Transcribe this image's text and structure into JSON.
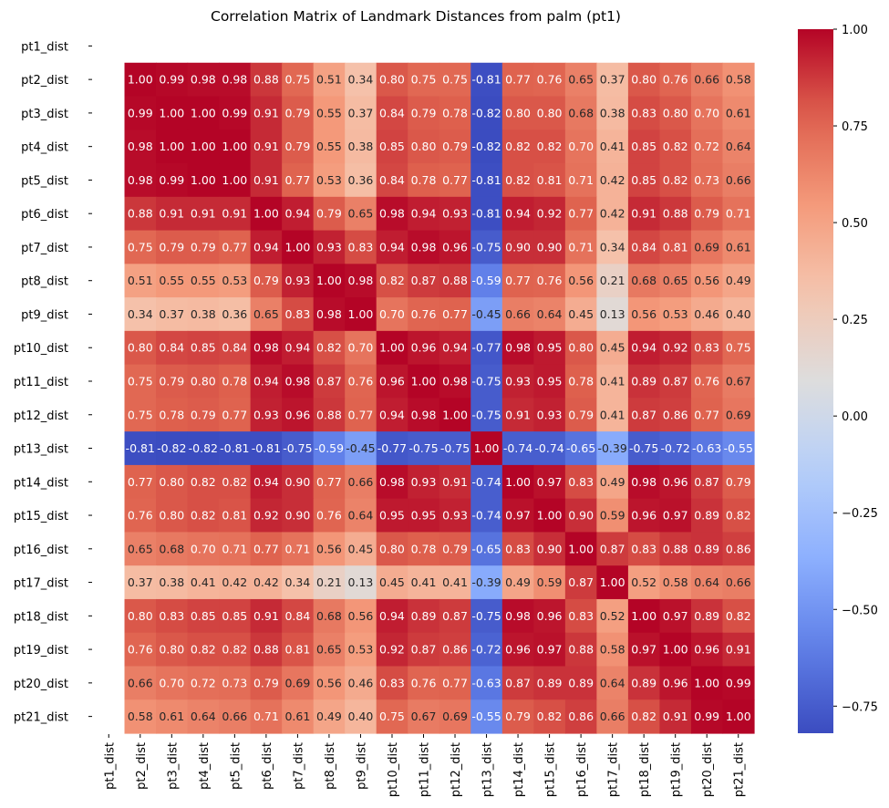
{
  "chart_data": {
    "type": "heatmap",
    "title": "Correlation Matrix of Landmark Distances from palm (pt1)",
    "rows": [
      "pt1_dist",
      "pt2_dist",
      "pt3_dist",
      "pt4_dist",
      "pt5_dist",
      "pt6_dist",
      "pt7_dist",
      "pt8_dist",
      "pt9_dist",
      "pt10_dist",
      "pt11_dist",
      "pt12_dist",
      "pt13_dist",
      "pt14_dist",
      "pt15_dist",
      "pt16_dist",
      "pt17_dist",
      "pt18_dist",
      "pt19_dist",
      "pt20_dist",
      "pt21_dist"
    ],
    "columns": [
      "pt1_dist",
      "pt2_dist",
      "pt3_dist",
      "pt4_dist",
      "pt5_dist",
      "pt6_dist",
      "pt7_dist",
      "pt8_dist",
      "pt9_dist",
      "pt10_dist",
      "pt11_dist",
      "pt12_dist",
      "pt13_dist",
      "pt14_dist",
      "pt15_dist",
      "pt16_dist",
      "pt17_dist",
      "pt18_dist",
      "pt19_dist",
      "pt20_dist",
      "pt21_dist"
    ],
    "values": [
      [
        null,
        null,
        null,
        null,
        null,
        null,
        null,
        null,
        null,
        null,
        null,
        null,
        null,
        null,
        null,
        null,
        null,
        null,
        null,
        null,
        null
      ],
      [
        null,
        1.0,
        0.99,
        0.98,
        0.98,
        0.88,
        0.75,
        0.51,
        0.34,
        0.8,
        0.75,
        0.75,
        -0.81,
        0.77,
        0.76,
        0.65,
        0.37,
        0.8,
        0.76,
        0.66,
        0.58
      ],
      [
        null,
        0.99,
        1.0,
        1.0,
        0.99,
        0.91,
        0.79,
        0.55,
        0.37,
        0.84,
        0.79,
        0.78,
        -0.82,
        0.8,
        0.8,
        0.68,
        0.38,
        0.83,
        0.8,
        0.7,
        0.61
      ],
      [
        null,
        0.98,
        1.0,
        1.0,
        1.0,
        0.91,
        0.79,
        0.55,
        0.38,
        0.85,
        0.8,
        0.79,
        -0.82,
        0.82,
        0.82,
        0.7,
        0.41,
        0.85,
        0.82,
        0.72,
        0.64
      ],
      [
        null,
        0.98,
        0.99,
        1.0,
        1.0,
        0.91,
        0.77,
        0.53,
        0.36,
        0.84,
        0.78,
        0.77,
        -0.81,
        0.82,
        0.81,
        0.71,
        0.42,
        0.85,
        0.82,
        0.73,
        0.66
      ],
      [
        null,
        0.88,
        0.91,
        0.91,
        0.91,
        1.0,
        0.94,
        0.79,
        0.65,
        0.98,
        0.94,
        0.93,
        -0.81,
        0.94,
        0.92,
        0.77,
        0.42,
        0.91,
        0.88,
        0.79,
        0.71
      ],
      [
        null,
        0.75,
        0.79,
        0.79,
        0.77,
        0.94,
        1.0,
        0.93,
        0.83,
        0.94,
        0.98,
        0.96,
        -0.75,
        0.9,
        0.9,
        0.71,
        0.34,
        0.84,
        0.81,
        0.69,
        0.61
      ],
      [
        null,
        0.51,
        0.55,
        0.55,
        0.53,
        0.79,
        0.93,
        1.0,
        0.98,
        0.82,
        0.87,
        0.88,
        -0.59,
        0.77,
        0.76,
        0.56,
        0.21,
        0.68,
        0.65,
        0.56,
        0.49
      ],
      [
        null,
        0.34,
        0.37,
        0.38,
        0.36,
        0.65,
        0.83,
        0.98,
        1.0,
        0.7,
        0.76,
        0.77,
        -0.45,
        0.66,
        0.64,
        0.45,
        0.13,
        0.56,
        0.53,
        0.46,
        0.4
      ],
      [
        null,
        0.8,
        0.84,
        0.85,
        0.84,
        0.98,
        0.94,
        0.82,
        0.7,
        1.0,
        0.96,
        0.94,
        -0.77,
        0.98,
        0.95,
        0.8,
        0.45,
        0.94,
        0.92,
        0.83,
        0.75
      ],
      [
        null,
        0.75,
        0.79,
        0.8,
        0.78,
        0.94,
        0.98,
        0.87,
        0.76,
        0.96,
        1.0,
        0.98,
        -0.75,
        0.93,
        0.95,
        0.78,
        0.41,
        0.89,
        0.87,
        0.76,
        0.67
      ],
      [
        null,
        0.75,
        0.78,
        0.79,
        0.77,
        0.93,
        0.96,
        0.88,
        0.77,
        0.94,
        0.98,
        1.0,
        -0.75,
        0.91,
        0.93,
        0.79,
        0.41,
        0.87,
        0.86,
        0.77,
        0.69
      ],
      [
        null,
        -0.81,
        -0.82,
        -0.82,
        -0.81,
        -0.81,
        -0.75,
        -0.59,
        -0.45,
        -0.77,
        -0.75,
        -0.75,
        1.0,
        -0.74,
        -0.74,
        -0.65,
        -0.39,
        -0.75,
        -0.72,
        -0.63,
        -0.55
      ],
      [
        null,
        0.77,
        0.8,
        0.82,
        0.82,
        0.94,
        0.9,
        0.77,
        0.66,
        0.98,
        0.93,
        0.91,
        -0.74,
        1.0,
        0.97,
        0.83,
        0.49,
        0.98,
        0.96,
        0.87,
        0.79
      ],
      [
        null,
        0.76,
        0.8,
        0.82,
        0.81,
        0.92,
        0.9,
        0.76,
        0.64,
        0.95,
        0.95,
        0.93,
        -0.74,
        0.97,
        1.0,
        0.9,
        0.59,
        0.96,
        0.97,
        0.89,
        0.82
      ],
      [
        null,
        0.65,
        0.68,
        0.7,
        0.71,
        0.77,
        0.71,
        0.56,
        0.45,
        0.8,
        0.78,
        0.79,
        -0.65,
        0.83,
        0.9,
        1.0,
        0.87,
        0.83,
        0.88,
        0.89,
        0.86
      ],
      [
        null,
        0.37,
        0.38,
        0.41,
        0.42,
        0.42,
        0.34,
        0.21,
        0.13,
        0.45,
        0.41,
        0.41,
        -0.39,
        0.49,
        0.59,
        0.87,
        1.0,
        0.52,
        0.58,
        0.64,
        0.66
      ],
      [
        null,
        0.8,
        0.83,
        0.85,
        0.85,
        0.91,
        0.84,
        0.68,
        0.56,
        0.94,
        0.89,
        0.87,
        -0.75,
        0.98,
        0.96,
        0.83,
        0.52,
        1.0,
        0.97,
        0.89,
        0.82
      ],
      [
        null,
        0.76,
        0.8,
        0.82,
        0.82,
        0.88,
        0.81,
        0.65,
        0.53,
        0.92,
        0.87,
        0.86,
        -0.72,
        0.96,
        0.97,
        0.88,
        0.58,
        0.97,
        1.0,
        0.96,
        0.91
      ],
      [
        null,
        0.66,
        0.7,
        0.72,
        0.73,
        0.79,
        0.69,
        0.56,
        0.46,
        0.83,
        0.76,
        0.77,
        -0.63,
        0.87,
        0.89,
        0.89,
        0.64,
        0.89,
        0.96,
        1.0,
        0.99
      ],
      [
        null,
        0.58,
        0.61,
        0.64,
        0.66,
        0.71,
        0.61,
        0.49,
        0.4,
        0.75,
        0.67,
        0.69,
        -0.55,
        0.79,
        0.82,
        0.86,
        0.66,
        0.82,
        0.91,
        0.99,
        1.0
      ]
    ],
    "colormap": "coolwarm",
    "vmin": -0.82,
    "vmax": 1.0,
    "colorbar_ticks": [
      "1.00",
      "0.75",
      "0.50",
      "0.25",
      "0.00",
      "−0.25",
      "−0.50",
      "−0.75"
    ],
    "colorbar_tick_values": [
      1.0,
      0.75,
      0.5,
      0.25,
      0.0,
      -0.25,
      -0.5,
      -0.75
    ],
    "annotations": true
  }
}
